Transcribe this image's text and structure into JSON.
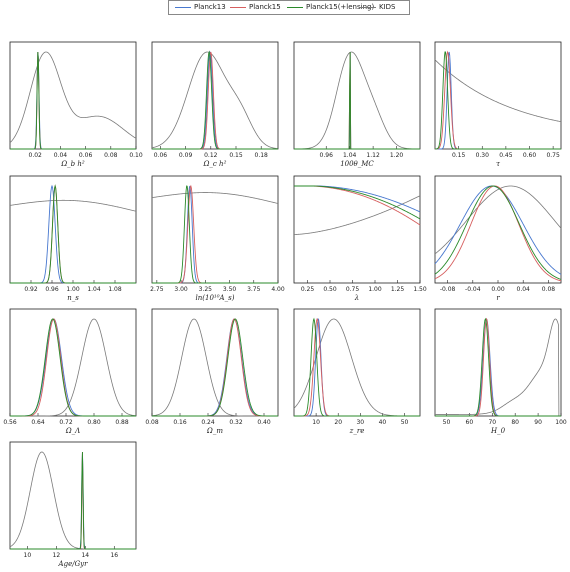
{
  "legend": [
    {
      "name": "Planck13",
      "color": "#4878cf"
    },
    {
      "name": "Planck15",
      "color": "#d65f5f"
    },
    {
      "name": "Planck15(+lensing)",
      "color": "#2a8a2a"
    },
    {
      "name": "KIDS",
      "color": "#7a7a7a"
    }
  ],
  "chart_data": [
    {
      "type": "line",
      "xlabel": "Ω_b h²",
      "xlim": [
        0.0,
        0.1
      ],
      "xticks": [
        "0.02",
        "0.04",
        "0.06",
        "0.08",
        "0.10"
      ],
      "xtick_values": [
        0.02,
        0.04,
        0.06,
        0.08,
        0.1
      ],
      "series": [
        {
          "name": "Planck13",
          "peaks": [
            [
              0.0222,
              0.0008,
              1.0
            ]
          ]
        },
        {
          "name": "Planck15",
          "peaks": [
            [
              0.0222,
              0.0007,
              1.0
            ]
          ]
        },
        {
          "name": "Planck15(+lensing)",
          "peaks": [
            [
              0.0222,
              0.0007,
              1.0
            ]
          ]
        },
        {
          "name": "KIDS",
          "peaks": [
            [
              0.028,
              0.012,
              1.0
            ],
            [
              0.07,
              0.02,
              0.35
            ]
          ],
          "baseline": 0.0
        }
      ]
    },
    {
      "type": "line",
      "xlabel": "Ω_c h²",
      "xlim": [
        0.05,
        0.2
      ],
      "xticks": [
        "0.06",
        "0.09",
        "0.12",
        "0.15",
        "0.18"
      ],
      "xtick_values": [
        0.06,
        0.09,
        0.12,
        0.15,
        0.18
      ],
      "series": [
        {
          "name": "Planck13",
          "peaks": [
            [
              0.119,
              0.003,
              1.0
            ]
          ]
        },
        {
          "name": "Planck15",
          "peaks": [
            [
              0.12,
              0.003,
              1.0
            ]
          ]
        },
        {
          "name": "Planck15(+lensing)",
          "peaks": [
            [
              0.118,
              0.003,
              1.0
            ]
          ]
        },
        {
          "name": "KIDS",
          "peaks": [
            [
              0.115,
              0.022,
              1.0
            ],
            [
              0.155,
              0.015,
              0.3
            ]
          ],
          "baseline": 0.0
        }
      ]
    },
    {
      "type": "line",
      "xlabel": "100θ_MC",
      "xlim": [
        0.85,
        1.28
      ],
      "xticks": [
        "0.96",
        "1.04",
        "1.12",
        "1.20"
      ],
      "xtick_values": [
        0.96,
        1.04,
        1.12,
        1.2
      ],
      "series": [
        {
          "name": "Planck13",
          "peaks": [
            [
              1.0413,
              0.0007,
              1.0
            ]
          ]
        },
        {
          "name": "Planck15",
          "peaks": [
            [
              1.0409,
              0.0006,
              1.0
            ]
          ]
        },
        {
          "name": "Planck15(+lensing)",
          "peaks": [
            [
              1.0409,
              0.0006,
              1.0
            ]
          ]
        },
        {
          "name": "KIDS",
          "peaks": [
            [
              1.04,
              0.045,
              1.0
            ],
            [
              1.12,
              0.04,
              0.35
            ]
          ],
          "baseline": 0.0
        }
      ]
    },
    {
      "type": "line",
      "xlabel": "τ",
      "xlim": [
        0.0,
        0.8
      ],
      "xticks": [
        "0.15",
        "0.30",
        "0.45",
        "0.60",
        "0.75"
      ],
      "xtick_values": [
        0.15,
        0.3,
        0.45,
        0.6,
        0.75
      ],
      "series": [
        {
          "name": "Planck13",
          "peaks": [
            [
              0.09,
              0.013,
              1.0
            ]
          ]
        },
        {
          "name": "Planck15",
          "peaks": [
            [
              0.08,
              0.018,
              1.0
            ]
          ]
        },
        {
          "name": "Planck15(+lensing)",
          "peaks": [
            [
              0.065,
              0.015,
              1.0
            ]
          ]
        },
        {
          "name": "KIDS",
          "decay": [
            0.8,
            0.12
          ],
          "baseline": 0.0
        }
      ]
    },
    {
      "type": "line",
      "xlabel": "n_s",
      "xlim": [
        0.88,
        1.12
      ],
      "xticks": [
        "0.92",
        "0.96",
        "1.00",
        "1.04",
        "1.08"
      ],
      "xtick_values": [
        0.92,
        0.96,
        1.0,
        1.04,
        1.08
      ],
      "series": [
        {
          "name": "Planck13",
          "peaks": [
            [
              0.96,
              0.006,
              1.0
            ]
          ]
        },
        {
          "name": "Planck15",
          "peaks": [
            [
              0.966,
              0.005,
              1.0
            ]
          ]
        },
        {
          "name": "Planck15(+lensing)",
          "peaks": [
            [
              0.966,
              0.005,
              1.0
            ]
          ]
        },
        {
          "name": "KIDS",
          "flat": 0.8
        }
      ]
    },
    {
      "type": "line",
      "xlabel": "ln(10¹⁰A_s)",
      "xlim": [
        2.7,
        4.0
      ],
      "xticks": [
        "2.75",
        "3.00",
        "3.25",
        "3.50",
        "3.75",
        "4.00"
      ],
      "xtick_values": [
        2.75,
        3.0,
        3.25,
        3.5,
        3.75,
        4.0
      ],
      "series": [
        {
          "name": "Planck13",
          "peaks": [
            [
              3.09,
              0.025,
              1.0
            ]
          ]
        },
        {
          "name": "Planck15",
          "peaks": [
            [
              3.1,
              0.03,
              1.0
            ]
          ]
        },
        {
          "name": "Planck15(+lensing)",
          "peaks": [
            [
              3.06,
              0.025,
              1.0
            ]
          ]
        },
        {
          "name": "KIDS",
          "flat": 0.88
        }
      ]
    },
    {
      "type": "line",
      "xlabel": "λ",
      "xlim": [
        0.1,
        1.5
      ],
      "xticks": [
        "0.25",
        "0.50",
        "0.75",
        "1.00",
        "1.25",
        "1.50"
      ],
      "xtick_values": [
        0.25,
        0.5,
        0.75,
        1.0,
        1.25,
        1.5
      ],
      "series": [
        {
          "name": "Planck13",
          "lambda": [
            1.0,
            0.7
          ]
        },
        {
          "name": "Planck15",
          "lambda": [
            1.0,
            0.55
          ]
        },
        {
          "name": "Planck15(+lensing)",
          "lambda": [
            1.0,
            0.62
          ]
        },
        {
          "name": "KIDS",
          "lambdaK": [
            0.5,
            0.9
          ]
        }
      ]
    },
    {
      "type": "line",
      "xlabel": "r",
      "xlim": [
        -0.1,
        0.1
      ],
      "xticks": [
        "-0.08",
        "-0.04",
        "0.00",
        "0.04",
        "0.08"
      ],
      "xtick_values": [
        -0.08,
        -0.04,
        0.0,
        0.04,
        0.08
      ],
      "series": [
        {
          "name": "Planck13",
          "peaks": [
            [
              -0.01,
              0.05,
              1.0
            ]
          ]
        },
        {
          "name": "Planck15",
          "peaks": [
            [
              -0.005,
              0.038,
              1.0
            ]
          ]
        },
        {
          "name": "Planck15(+lensing)",
          "peaks": [
            [
              -0.008,
              0.042,
              1.0
            ]
          ]
        },
        {
          "name": "KIDS",
          "peaks": [
            [
              0.02,
              0.07,
              1.0
            ]
          ],
          "baseline": 0.1
        }
      ]
    },
    {
      "type": "line",
      "xlabel": "Ω_Λ",
      "xlim": [
        0.56,
        0.92
      ],
      "xticks": [
        "0.56",
        "0.64",
        "0.72",
        "0.80",
        "0.88"
      ],
      "xtick_values": [
        0.56,
        0.64,
        0.72,
        0.8,
        0.88
      ],
      "series": [
        {
          "name": "Planck13",
          "peaks": [
            [
              0.685,
              0.022,
              1.0
            ]
          ]
        },
        {
          "name": "Planck15",
          "peaks": [
            [
              0.685,
              0.02,
              1.0
            ]
          ]
        },
        {
          "name": "Planck15(+lensing)",
          "peaks": [
            [
              0.682,
              0.021,
              1.0
            ]
          ]
        },
        {
          "name": "KIDS",
          "peaks": [
            [
              0.8,
              0.035,
              1.0
            ]
          ]
        }
      ]
    },
    {
      "type": "line",
      "xlabel": "Ω_m",
      "xlim": [
        0.08,
        0.44
      ],
      "xticks": [
        "0.08",
        "0.16",
        "0.24",
        "0.32",
        "0.40"
      ],
      "xtick_values": [
        0.08,
        0.16,
        0.24,
        0.32,
        0.4
      ],
      "series": [
        {
          "name": "Planck13",
          "peaks": [
            [
              0.315,
              0.021,
              1.0
            ]
          ]
        },
        {
          "name": "Planck15",
          "peaks": [
            [
              0.315,
              0.02,
              1.0
            ]
          ]
        },
        {
          "name": "Planck15(+lensing)",
          "peaks": [
            [
              0.318,
              0.021,
              1.0
            ]
          ]
        },
        {
          "name": "KIDS",
          "peaks": [
            [
              0.2,
              0.035,
              1.0
            ]
          ]
        }
      ]
    },
    {
      "type": "line",
      "xlabel": "z_re",
      "xlim": [
        0,
        57
      ],
      "xticks": [
        "10",
        "20",
        "30",
        "40",
        "50"
      ],
      "xtick_values": [
        10,
        20,
        30,
        40,
        50
      ],
      "series": [
        {
          "name": "Planck13",
          "peaks": [
            [
              11.0,
              1.2,
              1.0
            ]
          ]
        },
        {
          "name": "Planck15",
          "peaks": [
            [
              10.5,
              1.5,
              1.0
            ]
          ]
        },
        {
          "name": "Planck15(+lensing)",
          "peaks": [
            [
              9.0,
              1.3,
              1.0
            ]
          ]
        },
        {
          "name": "KIDS",
          "peaks": [
            [
              18,
              8,
              1.0
            ]
          ],
          "baseline": 0.0
        }
      ]
    },
    {
      "type": "line",
      "xlabel": "H_0",
      "xlim": [
        45,
        100
      ],
      "xticks": [
        "50",
        "60",
        "70",
        "80",
        "90",
        "100"
      ],
      "xtick_values": [
        50,
        60,
        70,
        80,
        90,
        100
      ],
      "series": [
        {
          "name": "Planck13",
          "peaks": [
            [
              67.5,
              1.5,
              1.0
            ]
          ]
        },
        {
          "name": "Planck15",
          "peaks": [
            [
              67.5,
              1.3,
              1.0
            ]
          ]
        },
        {
          "name": "Planck15(+lensing)",
          "peaks": [
            [
              67.0,
              1.4,
              1.0
            ]
          ]
        },
        {
          "name": "KIDS",
          "h0": true
        }
      ]
    },
    {
      "type": "line",
      "xlabel": "Age/Gyr",
      "xlim": [
        8.8,
        17.5
      ],
      "xticks": [
        "10",
        "12",
        "14",
        "16"
      ],
      "xtick_values": [
        10,
        12,
        14,
        16
      ],
      "series": [
        {
          "name": "Planck13",
          "peaks": [
            [
              13.8,
              0.05,
              1.0
            ]
          ]
        },
        {
          "name": "Planck15",
          "peaks": [
            [
              13.8,
              0.04,
              1.0
            ]
          ]
        },
        {
          "name": "Planck15(+lensing)",
          "peaks": [
            [
              13.8,
              0.045,
              1.0
            ]
          ]
        },
        {
          "name": "KIDS",
          "peaks": [
            [
              11.0,
              0.8,
              1.0
            ]
          ],
          "baseline": 0.0
        }
      ]
    }
  ]
}
